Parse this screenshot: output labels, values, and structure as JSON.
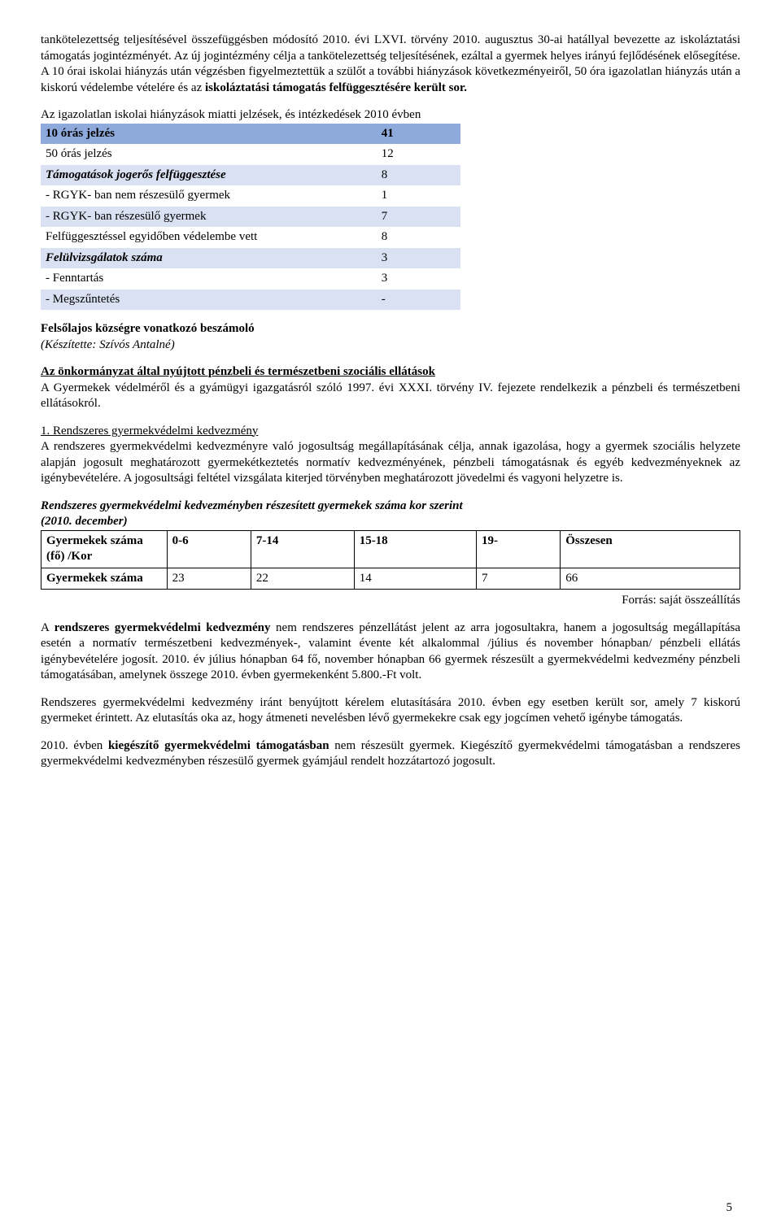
{
  "para1": "tankötelezettség teljesítésével összefüggésben módosító 2010. évi LXVI. törvény 2010. augusztus 30-ai hatállyal bevezette az iskoláztatási támogatás jogintézményét. Az új jogintézmény célja a tankötelezettség teljesítésének, ezáltal a gyermek helyes irányú fejlődésének elősegítése. A 10 órai iskolai hiányzás után végzésben figyelmeztettük a szülőt a további hiányzások következményeiről, 50 óra igazolatlan hiányzás után a kiskorú védelembe vételére és az ",
  "para1_bold": "iskoláztatási támogatás felfüggesztésére került sor.",
  "para2": "Az igazolatlan iskolai hiányzások miatti jelzések, és intézkedések 2010 évben",
  "t1": {
    "rows": [
      {
        "label": "10 órás jelzés",
        "value": "41",
        "style": "header-row",
        "labelClass": "bold"
      },
      {
        "label": "50 órás jelzés",
        "value": "12",
        "style": "plain",
        "labelClass": ""
      },
      {
        "label": "Támogatások jogerős felfüggesztése",
        "value": "8",
        "style": "alt",
        "labelClass": "bold-italic"
      },
      {
        "label": "- RGYK- ban nem részesülő gyermek",
        "value": "1",
        "style": "plain",
        "labelClass": ""
      },
      {
        "label": "- RGYK- ban részesülő gyermek",
        "value": "7",
        "style": "alt",
        "labelClass": ""
      },
      {
        "label": "Felfüggesztéssel egyidőben védelembe vett",
        "value": "8",
        "style": "plain",
        "labelClass": ""
      },
      {
        "label": "Felülvizsgálatok száma",
        "value": "3",
        "style": "alt",
        "labelClass": "bold-italic"
      },
      {
        "label": "-    Fenntartás",
        "value": "3",
        "style": "plain",
        "labelClass": "",
        "indent": true
      },
      {
        "label": "-    Megszűntetés",
        "value": "-",
        "style": "alt",
        "labelClass": "",
        "indent": true
      }
    ]
  },
  "section1_title": "Felsőlajos községre vonatkozó beszámoló",
  "section1_sub": "(Készítette: Szívós Antalné)",
  "section2_title": "Az önkormányzat által nyújtott pénzbeli és természetbeni szociális ellátások",
  "section2_body": "A Gyermekek védelméről és a gyámügyi igazgatásról szóló 1997. évi XXXI. törvény IV. fejezete rendelkezik a pénzbeli és természetbeni ellátásokról.",
  "section3_title": "1. Rendszeres gyermekvédelmi kedvezmény",
  "section3_body": "A rendszeres gyermekvédelmi kedvezményre való jogosultság megállapításának célja, annak igazolása, hogy a gyermek szociális helyzete alapján jogosult meghatározott gyermekétkeztetés normatív kedvezményének, pénzbeli támogatásnak és egyéb kedvezményeknek az igénybevételére. A jogosultsági feltétel vizsgálata kiterjed törvényben meghatározott jövedelmi és vagyoni helyzetre is.",
  "t2_title": "Rendszeres gyermekvédelmi kedvezményben részesített gyermekek száma kor szerint",
  "t2_sub": "(2010. december)",
  "t2": {
    "header": [
      "Gyermekek száma (fő) /Kor",
      "0-6",
      "7-14",
      "15-18",
      "19-",
      "Összesen"
    ],
    "row": [
      "Gyermekek száma",
      "23",
      "22",
      "14",
      "7",
      "66"
    ]
  },
  "source": "Forrás: saját összeállítás",
  "para3_a": "A ",
  "para3_b": "rendszeres gyermekvédelmi kedvezmény",
  "para3_c": " nem rendszeres pénzellátást jelent az arra jogosultakra, hanem a jogosultság megállapítása esetén a normatív természetbeni kedvezmények-, valamint évente két alkalommal /július és november hónapban/ pénzbeli ellátás igénybevételére jogosít. 2010. év július hónapban 64 fő, november hónapban 66 gyermek részesült a gyermekvédelmi kedvezmény pénzbeli támogatásában, amelynek összege 2010. évben gyermekenként 5.800.-Ft volt.",
  "para4": "Rendszeres gyermekvédelmi kedvezmény iránt benyújtott kérelem elutasítására 2010. évben egy esetben került sor, amely 7 kiskorú gyermeket érintett. Az elutasítás oka az, hogy átmeneti nevelésben lévő gyermekekre csak egy jogcímen vehető igénybe támogatás.",
  "para5_a": "2010. évben ",
  "para5_b": "kiegészítő gyermekvédelmi támogatásban",
  "para5_c": " nem részesült gyermek. Kiegészítő gyermekvédelmi támogatásban a rendszeres gyermekvédelmi kedvezményben részesülő gyermek gyámjául rendelt hozzátartozó jogosult.",
  "pagenum": "5"
}
